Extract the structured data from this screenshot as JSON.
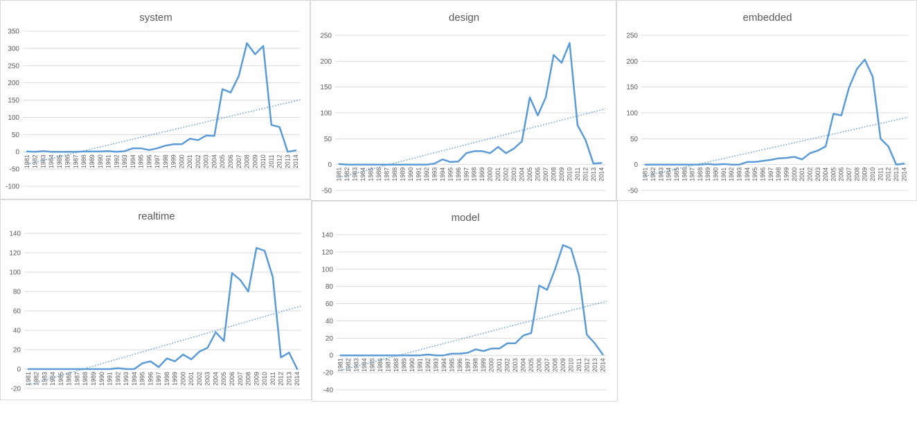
{
  "series_color": "#5B9BD5",
  "trend_color": "#5B9BD5",
  "years": [
    "1981",
    "1982",
    "1983",
    "1984",
    "1985",
    "1986",
    "1987",
    "1988",
    "1989",
    "1990",
    "1991",
    "1992",
    "1993",
    "1994",
    "1995",
    "1996",
    "1997",
    "1998",
    "1999",
    "2000",
    "2001",
    "2002",
    "2003",
    "2004",
    "2005",
    "2006",
    "2007",
    "2008",
    "2009",
    "2010",
    "2011",
    "2012",
    "2013",
    "2014"
  ],
  "chart_data": [
    {
      "type": "line",
      "title": "system",
      "x": [
        "1981",
        "1982",
        "1983",
        "1984",
        "1985",
        "1986",
        "1987",
        "1988",
        "1989",
        "1990",
        "1991",
        "1992",
        "1993",
        "1994",
        "1995",
        "1996",
        "1997",
        "1998",
        "1999",
        "2000",
        "2001",
        "2002",
        "2003",
        "2004",
        "2005",
        "2006",
        "2007",
        "2008",
        "2009",
        "2010",
        "2011",
        "2012",
        "2013",
        "2014"
      ],
      "values": [
        1,
        0,
        2,
        0,
        0,
        0,
        0,
        1,
        1,
        1,
        2,
        0,
        2,
        10,
        10,
        5,
        10,
        18,
        22,
        22,
        38,
        34,
        47,
        46,
        182,
        172,
        220,
        315,
        283,
        307,
        78,
        72,
        0,
        4
      ],
      "ylim": [
        -100,
        350
      ],
      "yticks": [
        -100,
        -50,
        0,
        50,
        100,
        150,
        200,
        250,
        300,
        350
      ],
      "trendline": "linear"
    },
    {
      "type": "line",
      "title": "design",
      "x": [
        "1981",
        "1982",
        "1983",
        "1984",
        "1985",
        "1986",
        "1987",
        "1988",
        "1989",
        "1990",
        "1991",
        "1992",
        "1993",
        "1994",
        "1995",
        "1996",
        "1997",
        "1998",
        "1999",
        "2000",
        "2001",
        "2002",
        "2003",
        "2004",
        "2005",
        "2006",
        "2007",
        "2008",
        "2009",
        "2010",
        "2011",
        "2012",
        "2013",
        "2014"
      ],
      "values": [
        1,
        0,
        0,
        0,
        0,
        0,
        0,
        0,
        0,
        0,
        0,
        0,
        2,
        10,
        5,
        6,
        22,
        26,
        26,
        22,
        34,
        22,
        31,
        45,
        130,
        95,
        130,
        212,
        197,
        235,
        76,
        48,
        2,
        3
      ],
      "ylim": [
        -50,
        250
      ],
      "yticks": [
        -50,
        0,
        50,
        100,
        150,
        200,
        250
      ],
      "trendline": "linear"
    },
    {
      "type": "line",
      "title": "embedded",
      "x": [
        "1981",
        "1982",
        "1983",
        "1984",
        "1985",
        "1986",
        "1987",
        "1988",
        "1989",
        "1990",
        "1991",
        "1992",
        "1993",
        "1994",
        "1995",
        "1996",
        "1997",
        "1998",
        "1999",
        "2000",
        "2001",
        "2002",
        "2003",
        "2004",
        "2005",
        "2006",
        "2007",
        "2008",
        "2009",
        "2010",
        "2011",
        "2012",
        "2013",
        "2014"
      ],
      "values": [
        0,
        0,
        0,
        0,
        0,
        0,
        0,
        0,
        1,
        0,
        1,
        0,
        0,
        5,
        5,
        7,
        9,
        12,
        13,
        15,
        10,
        22,
        27,
        35,
        98,
        95,
        150,
        185,
        203,
        170,
        50,
        35,
        0,
        2
      ],
      "ylim": [
        -50,
        250
      ],
      "yticks": [
        -50,
        0,
        50,
        100,
        150,
        200,
        250
      ],
      "trendline": "linear"
    },
    {
      "type": "line",
      "title": "realtime",
      "x": [
        "1981",
        "1982",
        "1983",
        "1984",
        "1985",
        "1986",
        "1987",
        "1988",
        "1989",
        "1990",
        "1991",
        "1992",
        "1993",
        "1994",
        "1995",
        "1996",
        "1997",
        "1998",
        "1999",
        "2000",
        "2001",
        "2002",
        "2003",
        "2004",
        "2005",
        "2006",
        "2007",
        "2008",
        "2009",
        "2010",
        "2011",
        "2012",
        "2013",
        "2014"
      ],
      "values": [
        0,
        0,
        0,
        0,
        0,
        0,
        0,
        0,
        0,
        0,
        0,
        1,
        0,
        0,
        6,
        8,
        2,
        11,
        8,
        15,
        10,
        18,
        22,
        38,
        29,
        99,
        92,
        80,
        125,
        122,
        95,
        12,
        17,
        0
      ],
      "ylim": [
        -20,
        140
      ],
      "yticks": [
        -20,
        0,
        20,
        40,
        60,
        80,
        100,
        120,
        140
      ],
      "trendline": "linear"
    },
    {
      "type": "line",
      "title": "model",
      "x": [
        "1981",
        "1982",
        "1983",
        "1984",
        "1985",
        "1986",
        "1987",
        "1988",
        "1989",
        "1990",
        "1991",
        "1992",
        "1993",
        "1994",
        "1995",
        "1996",
        "1997",
        "1998",
        "1999",
        "2000",
        "2001",
        "2002",
        "2003",
        "2004",
        "2005",
        "2006",
        "2007",
        "2008",
        "2009",
        "2010",
        "2011",
        "2012",
        "2013",
        "2014"
      ],
      "values": [
        0,
        0,
        0,
        0,
        0,
        0,
        0,
        0,
        0,
        0,
        0,
        1,
        0,
        0,
        2,
        2,
        3,
        7,
        5,
        8,
        8,
        14,
        14,
        23,
        26,
        81,
        76,
        100,
        128,
        124,
        93,
        24,
        14,
        1
      ],
      "ylim": [
        -40,
        140
      ],
      "yticks": [
        -40,
        -20,
        0,
        20,
        40,
        60,
        80,
        100,
        120,
        140
      ],
      "trendline": "linear"
    }
  ]
}
